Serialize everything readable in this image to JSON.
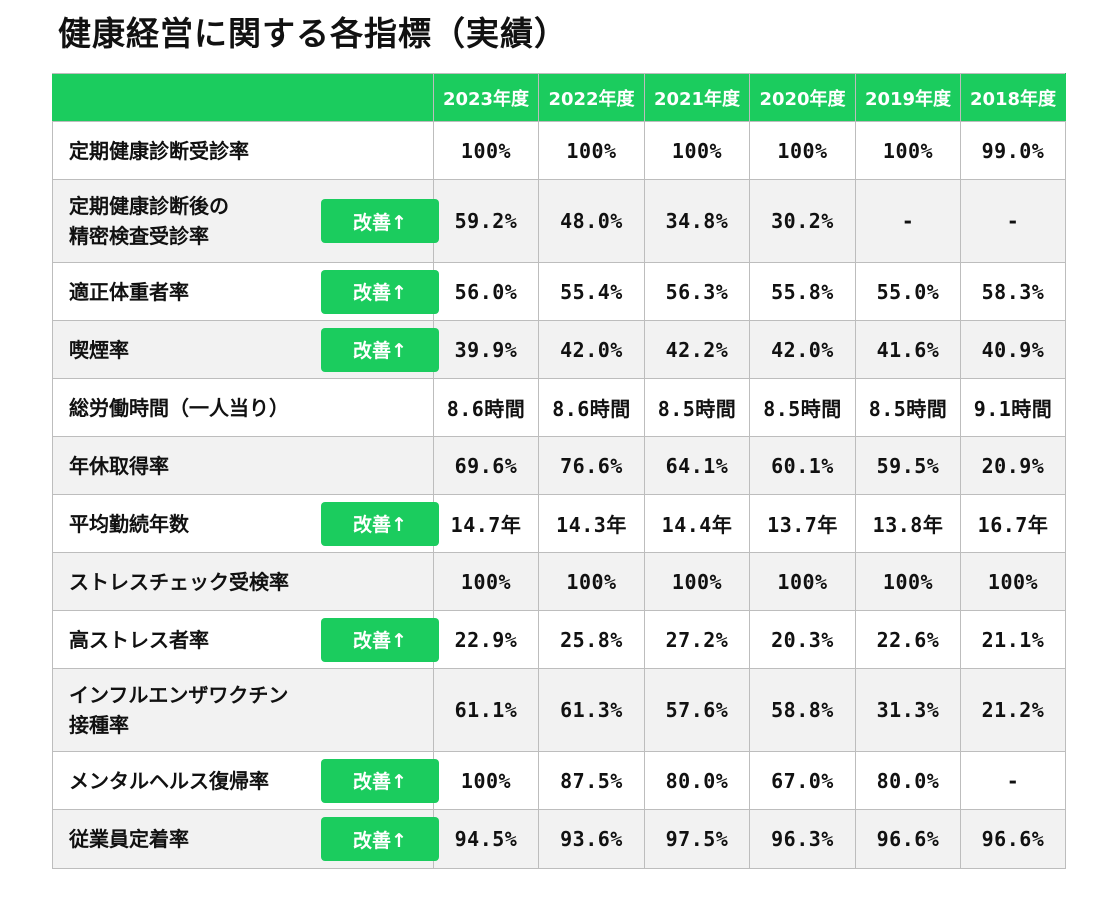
{
  "title": "健康経営に関する各指標（実績）",
  "header": {
    "years": [
      "2023年度",
      "2022年度",
      "2021年度",
      "2020年度",
      "2019年度",
      "2018年度"
    ]
  },
  "badge_label": "改善↑",
  "rows": [
    {
      "label": "定期健康診断受診率",
      "improved": false,
      "values": [
        "100%",
        "100%",
        "100%",
        "100%",
        "100%",
        "99.0%"
      ]
    },
    {
      "label": "定期健康診断後の\n精密検査受診率",
      "improved": true,
      "values": [
        "59.2%",
        "48.0%",
        "34.8%",
        "30.2%",
        "-",
        "-"
      ]
    },
    {
      "label": "適正体重者率",
      "improved": true,
      "values": [
        "56.0%",
        "55.4%",
        "56.3%",
        "55.8%",
        "55.0%",
        "58.3%"
      ]
    },
    {
      "label": "喫煙率",
      "improved": true,
      "values": [
        "39.9%",
        "42.0%",
        "42.2%",
        "42.0%",
        "41.6%",
        "40.9%"
      ]
    },
    {
      "label": "総労働時間（一人当り）",
      "improved": false,
      "values": [
        "8.6時間",
        "8.6時間",
        "8.5時間",
        "8.5時間",
        "8.5時間",
        "9.1時間"
      ]
    },
    {
      "label": "年休取得率",
      "improved": false,
      "values": [
        "69.6%",
        "76.6%",
        "64.1%",
        "60.1%",
        "59.5%",
        "20.9%"
      ]
    },
    {
      "label": "平均勤続年数",
      "improved": true,
      "values": [
        "14.7年",
        "14.3年",
        "14.4年",
        "13.7年",
        "13.8年",
        "16.7年"
      ]
    },
    {
      "label": "ストレスチェック受検率",
      "improved": false,
      "values": [
        "100%",
        "100%",
        "100%",
        "100%",
        "100%",
        "100%"
      ]
    },
    {
      "label": "高ストレス者率",
      "improved": true,
      "values": [
        "22.9%",
        "25.8%",
        "27.2%",
        "20.3%",
        "22.6%",
        "21.1%"
      ]
    },
    {
      "label": "インフルエンザワクチン\n接種率",
      "improved": false,
      "values": [
        "61.1%",
        "61.3%",
        "57.6%",
        "58.8%",
        "31.3%",
        "21.2%"
      ]
    },
    {
      "label": "メンタルヘルス復帰率",
      "improved": true,
      "values": [
        "100%",
        "87.5%",
        "80.0%",
        "67.0%",
        "80.0%",
        "-"
      ]
    },
    {
      "label": "従業員定着率",
      "improved": true,
      "values": [
        "94.5%",
        "93.6%",
        "97.5%",
        "96.3%",
        "96.6%",
        "96.6%"
      ]
    }
  ]
}
